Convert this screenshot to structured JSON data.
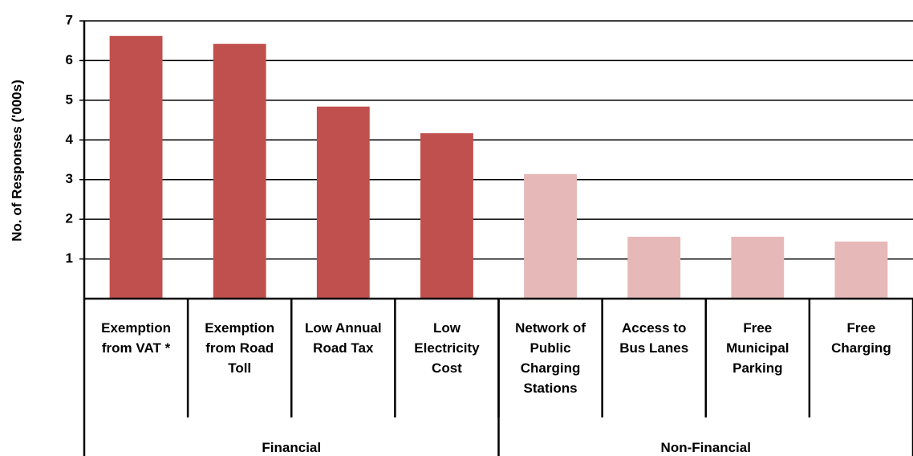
{
  "chart_data": {
    "type": "bar",
    "ylabel": "No. of Responses ('000s)",
    "categories": [
      "Exemption\nfrom VAT *",
      "Exemption\nfrom Road\nToll",
      "Low Annual\nRoad Tax",
      "Low\nElectricity\nCost",
      "Network of\nPublic\nCharging\nStations",
      "Access to\nBus Lanes",
      "Free\nMunicipal\nParking",
      "Free\nCharging"
    ],
    "series": [
      {
        "name": "Financial",
        "color": "#c0504d",
        "values": [
          6.62,
          6.42,
          4.84,
          4.17,
          null,
          null,
          null,
          null
        ]
      },
      {
        "name": "Non-Financial",
        "color": "#e6b9b8",
        "values": [
          null,
          null,
          null,
          null,
          3.14,
          1.56,
          1.56,
          1.44
        ]
      }
    ],
    "ylim": [
      0,
      7
    ],
    "yticks": [
      1,
      2,
      3,
      4,
      5,
      6,
      7
    ],
    "grid": true
  }
}
